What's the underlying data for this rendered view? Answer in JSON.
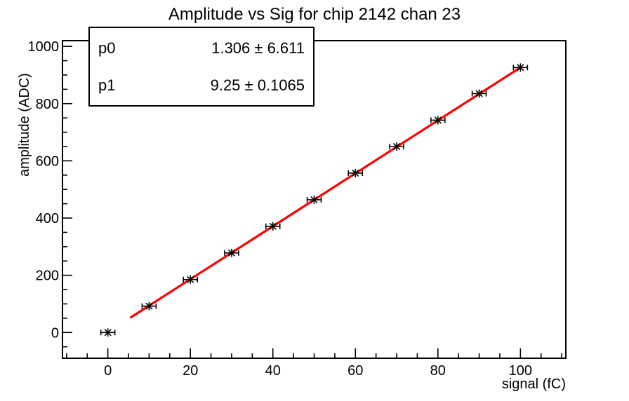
{
  "page": {
    "background": "#ffffff"
  },
  "chart_data": {
    "type": "scatter",
    "title": "Amplitude vs Sig for chip 2142 chan 23",
    "xlabel": "signal (fC)",
    "ylabel": "amplitude (ADC)",
    "xlim": [
      -11,
      111
    ],
    "ylim": [
      -90,
      1020
    ],
    "grid": false,
    "x_major_ticks": [
      0,
      20,
      40,
      60,
      80,
      100
    ],
    "x_minor_step": 5,
    "y_major_ticks": [
      0,
      200,
      400,
      600,
      800,
      1000
    ],
    "y_minor_step": 50,
    "points": {
      "x": [
        0,
        10,
        20,
        30,
        40,
        50,
        60,
        70,
        80,
        90,
        100
      ],
      "y": [
        0,
        92,
        185,
        278,
        371,
        464,
        557,
        650,
        742,
        835,
        926
      ],
      "x_err": 1.7
    },
    "marker": "star-with-x-error-bars",
    "marker_color": "#000000",
    "axis_color": "#000000",
    "fit": {
      "p0": 1.306,
      "p1": 9.25,
      "x_start": 5.4,
      "x_end": 100,
      "color": "#ff0000"
    }
  },
  "stats_box": {
    "rows": [
      {
        "param": "p0",
        "value": "1.306 ± 6.611"
      },
      {
        "param": "p1",
        "value": "9.25 ± 0.1065"
      }
    ]
  }
}
